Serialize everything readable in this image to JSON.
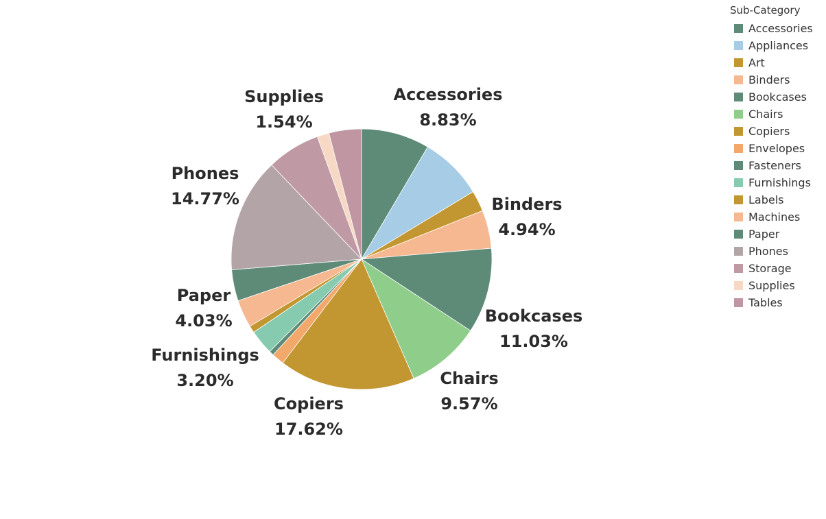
{
  "chart_data": {
    "type": "pie",
    "legend_title": "Sub-Category",
    "legend_position": "top-right",
    "series": [
      {
        "name": "Accessories",
        "value": 8.83,
        "color": "#5e8a78",
        "display_label": "8.83%"
      },
      {
        "name": "Appliances",
        "value": 8.2,
        "color": "#a6cce6",
        "display_label": ""
      },
      {
        "name": "Art",
        "value": 2.7,
        "color": "#c29630",
        "display_label": ""
      },
      {
        "name": "Binders",
        "value": 4.94,
        "color": "#f6b890",
        "display_label": "4.94%"
      },
      {
        "name": "Bookcases",
        "value": 11.03,
        "color": "#5e8a78",
        "display_label": "11.03%"
      },
      {
        "name": "Chairs",
        "value": 9.57,
        "color": "#8fcd8b",
        "display_label": "9.57%"
      },
      {
        "name": "Copiers",
        "value": 17.62,
        "color": "#c29630",
        "display_label": "17.62%"
      },
      {
        "name": "Envelopes",
        "value": 1.6,
        "color": "#f1a86a",
        "display_label": ""
      },
      {
        "name": "Fasteners",
        "value": 0.6,
        "color": "#5e8a78",
        "display_label": ""
      },
      {
        "name": "Furnishings",
        "value": 3.2,
        "color": "#86cbb0",
        "display_label": "3.20%"
      },
      {
        "name": "Labels",
        "value": 0.9,
        "color": "#c29630",
        "display_label": ""
      },
      {
        "name": "Machines",
        "value": 3.6,
        "color": "#f6b890",
        "display_label": ""
      },
      {
        "name": "Paper",
        "value": 4.03,
        "color": "#5e8a78",
        "display_label": "4.03%"
      },
      {
        "name": "Phones",
        "value": 14.77,
        "color": "#b3a4a8",
        "display_label": "14.77%"
      },
      {
        "name": "Storage",
        "value": 6.9,
        "color": "#bf99a4",
        "display_label": ""
      },
      {
        "name": "Supplies",
        "value": 1.54,
        "color": "#f7d8c4",
        "display_label": "1.54%"
      },
      {
        "name": "Tables",
        "value": 4.2,
        "color": "#bf96a2",
        "display_label": ""
      }
    ]
  }
}
